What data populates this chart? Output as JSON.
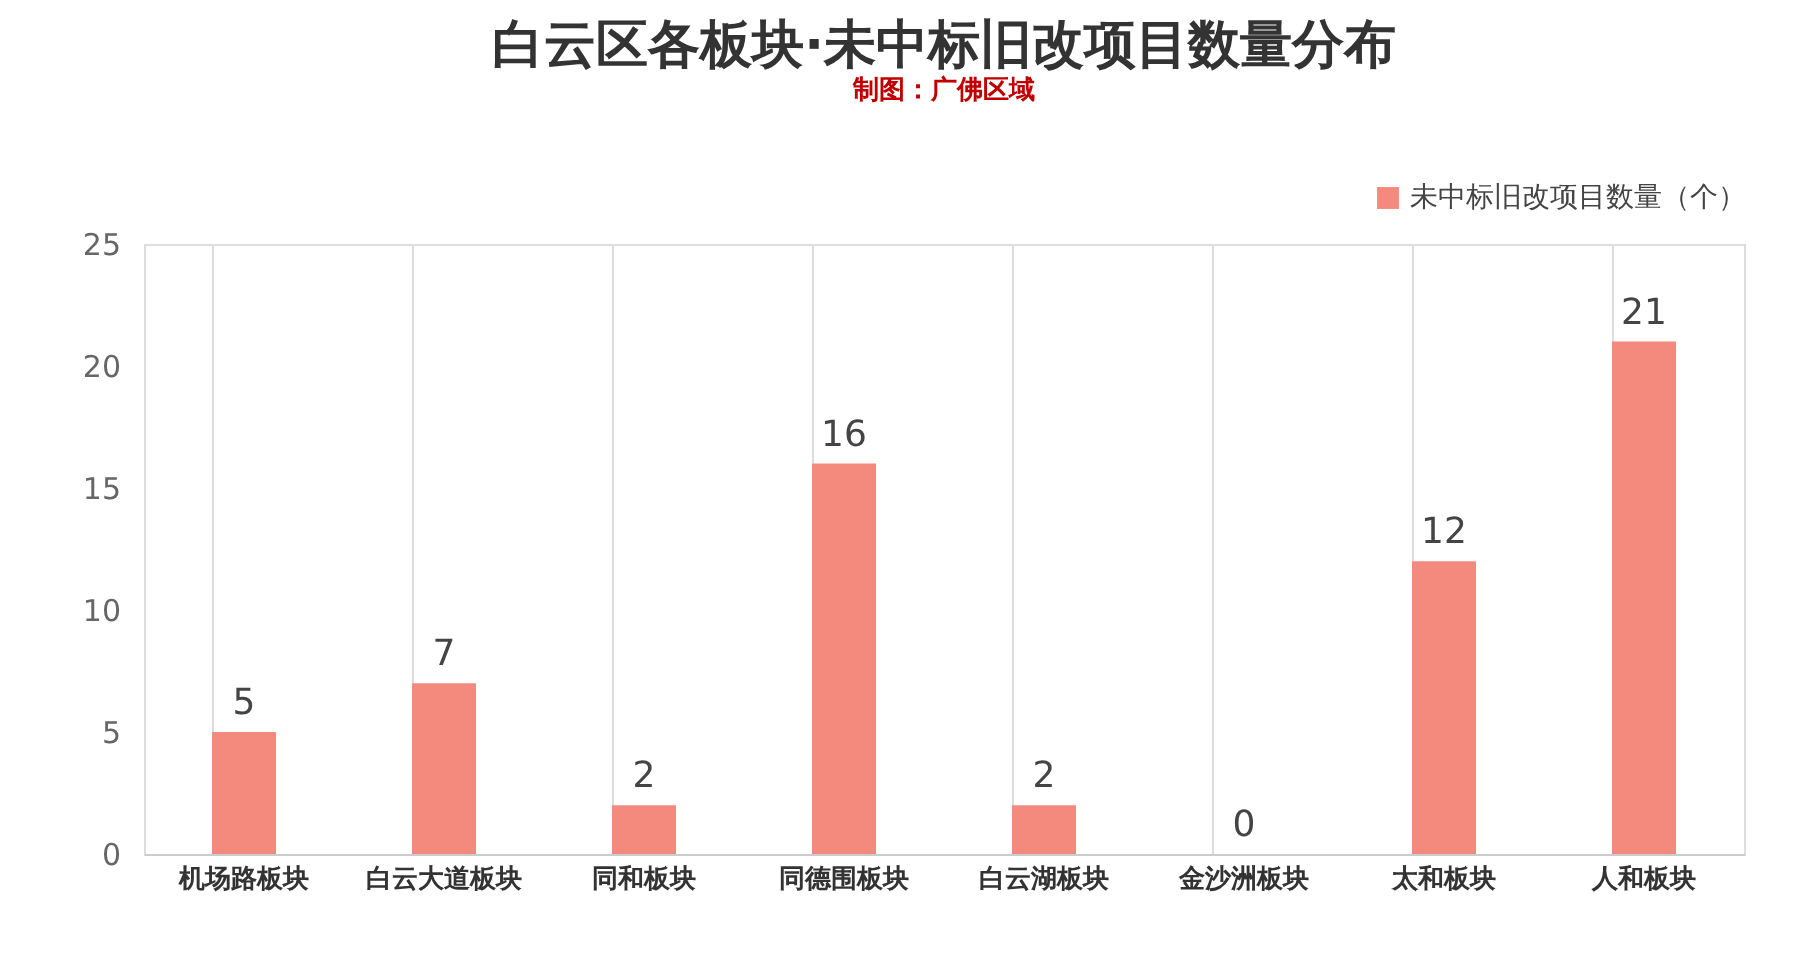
{
  "chart_data": {
    "type": "bar",
    "title": "白云区各板块·未中标旧改项目数量分布",
    "subtitle": "制图：广佛区域",
    "categories": [
      "机场路板块",
      "白云大道板块",
      "同和板块",
      "同德围板块",
      "白云湖板块",
      "金沙洲板块",
      "太和板块",
      "人和板块"
    ],
    "series": [
      {
        "name": "未中标旧改项目数量（个）",
        "color": "#f48a7e",
        "values": [
          5,
          7,
          2,
          16,
          2,
          0,
          12,
          21
        ]
      }
    ],
    "ylim": [
      0,
      25
    ],
    "yticks": [
      0,
      5,
      10,
      15,
      20,
      25
    ],
    "grid": "x",
    "legend": "top right",
    "data_labels": true
  }
}
